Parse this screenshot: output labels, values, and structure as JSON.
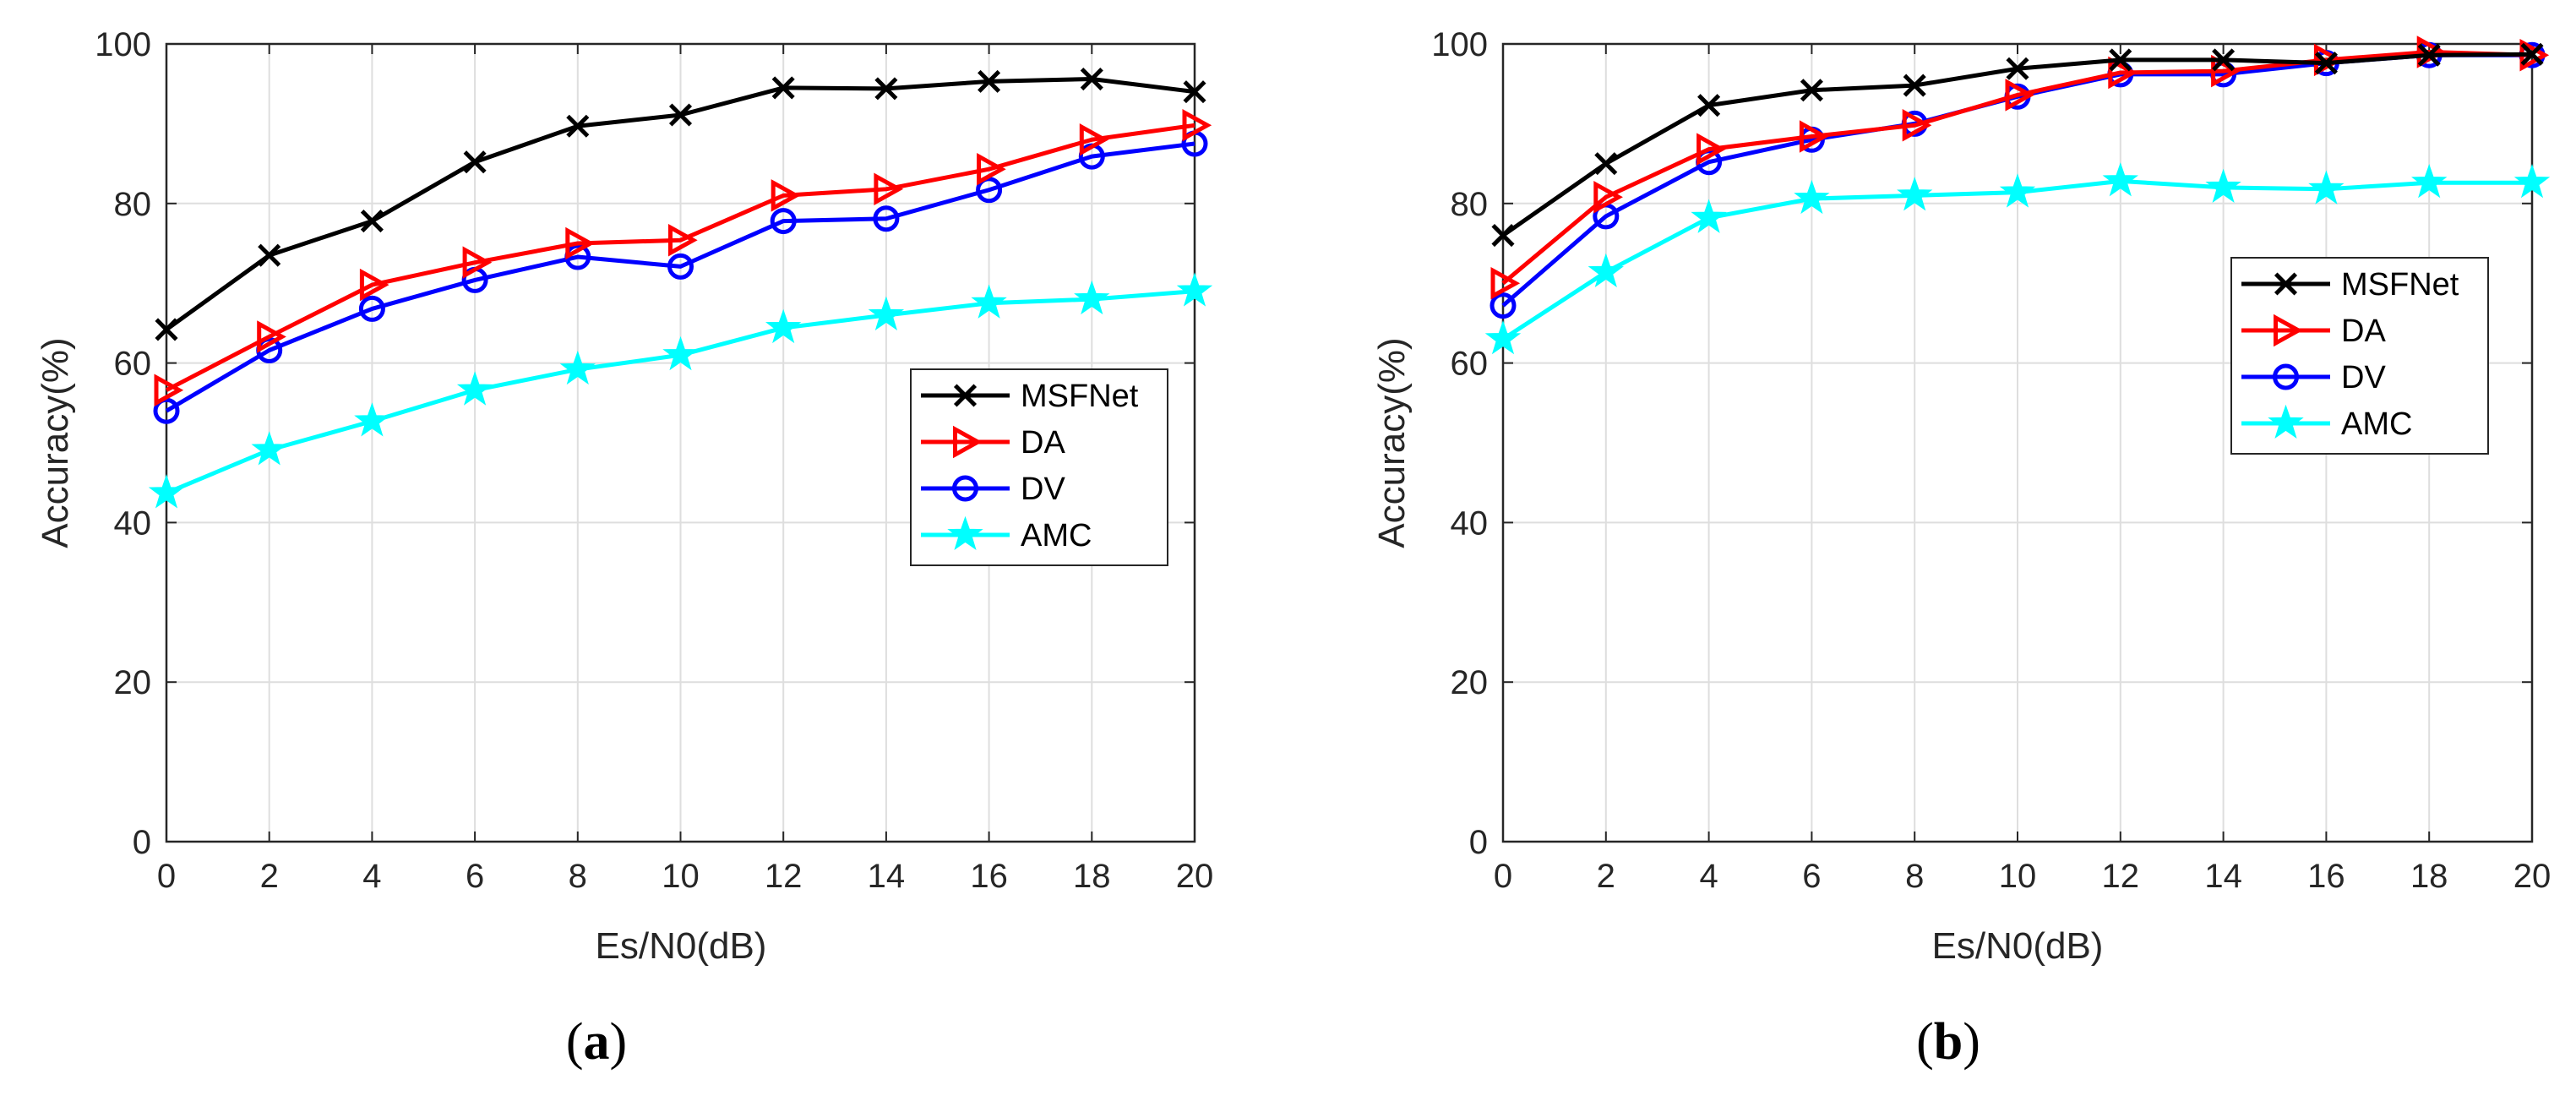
{
  "chart_data": [
    {
      "type": "line",
      "panel": "a",
      "caption": {
        "open": "(",
        "letter": "a",
        "close": ")"
      },
      "title": "",
      "xlabel": "Es/N0(dB)",
      "ylabel": "Accuracy(%)",
      "xlim": [
        0,
        20
      ],
      "ylim": [
        0,
        100
      ],
      "xticks": [
        0,
        2,
        4,
        6,
        8,
        10,
        12,
        14,
        16,
        18,
        20
      ],
      "yticks": [
        0,
        20,
        40,
        60,
        80,
        100
      ],
      "grid": true,
      "legend_position": "center-right",
      "x": [
        0,
        2,
        4,
        6,
        8,
        10,
        12,
        14,
        16,
        18,
        20
      ],
      "series": [
        {
          "name": "MSFNet",
          "color": "#000000",
          "marker": "x",
          "values": [
            64.2,
            73.5,
            77.8,
            85.2,
            89.7,
            91.1,
            94.5,
            94.4,
            95.3,
            95.6,
            94.0
          ]
        },
        {
          "name": "DA",
          "color": "#ff0000",
          "marker": "triangle-right",
          "values": [
            56.6,
            63.3,
            69.8,
            72.6,
            75.0,
            75.4,
            81.0,
            81.8,
            84.3,
            88.0,
            89.8
          ]
        },
        {
          "name": "DV",
          "color": "#0000ff",
          "marker": "circle",
          "values": [
            54.0,
            61.6,
            66.8,
            70.4,
            73.3,
            72.1,
            77.8,
            78.1,
            81.7,
            85.9,
            87.5
          ]
        },
        {
          "name": "AMC",
          "color": "#00ffff",
          "marker": "star",
          "values": [
            43.7,
            49.1,
            52.7,
            56.6,
            59.2,
            61.0,
            64.4,
            66.0,
            67.5,
            68.0,
            69.0
          ]
        }
      ]
    },
    {
      "type": "line",
      "panel": "b",
      "caption": {
        "open": "(",
        "letter": "b",
        "close": ")"
      },
      "title": "",
      "xlabel": "Es/N0(dB)",
      "ylabel": "Accuracy(%)",
      "xlim": [
        0,
        20
      ],
      "ylim": [
        0,
        100
      ],
      "xticks": [
        0,
        2,
        4,
        6,
        8,
        10,
        12,
        14,
        16,
        18,
        20
      ],
      "yticks": [
        0,
        20,
        40,
        60,
        80,
        100
      ],
      "grid": true,
      "legend_position": "upper-right",
      "x": [
        0,
        2,
        4,
        6,
        8,
        10,
        12,
        14,
        16,
        18,
        20
      ],
      "series": [
        {
          "name": "MSFNet",
          "color": "#000000",
          "marker": "x",
          "values": [
            76.0,
            85.0,
            92.3,
            94.2,
            94.8,
            96.9,
            98.0,
            98.0,
            97.6,
            98.6,
            98.7
          ]
        },
        {
          "name": "DA",
          "color": "#ff0000",
          "marker": "triangle-right",
          "values": [
            70.0,
            80.8,
            86.8,
            88.4,
            89.8,
            93.6,
            96.4,
            96.6,
            98.0,
            99.0,
            98.6
          ]
        },
        {
          "name": "DV",
          "color": "#0000ff",
          "marker": "circle",
          "values": [
            67.2,
            78.4,
            85.2,
            88.0,
            90.0,
            93.4,
            96.2,
            96.2,
            97.6,
            98.6,
            98.6
          ]
        },
        {
          "name": "AMC",
          "color": "#00ffff",
          "marker": "star",
          "values": [
            63.0,
            71.4,
            78.2,
            80.6,
            81.0,
            81.4,
            82.8,
            82.0,
            81.8,
            82.6,
            82.6
          ]
        }
      ]
    }
  ]
}
